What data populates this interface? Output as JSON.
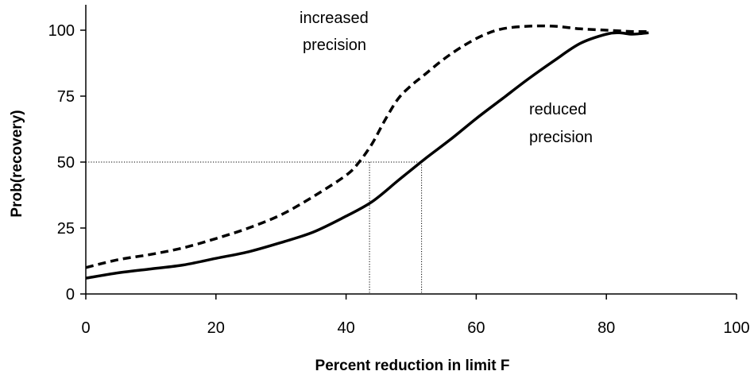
{
  "chart_data": {
    "type": "line",
    "title": "",
    "xlabel": "Percent reduction in limit F",
    "ylabel": "Prob(recovery)",
    "xlim": [
      0,
      100
    ],
    "ylim": [
      0,
      100
    ],
    "x_ticks": [
      0,
      20,
      40,
      60,
      80,
      100
    ],
    "y_ticks": [
      0,
      25,
      50,
      75,
      100
    ],
    "x_tick_labels": [
      "0",
      "20",
      "40",
      "60",
      "80",
      "100"
    ],
    "y_tick_labels": [
      "0",
      "25",
      "50",
      "75",
      "100"
    ],
    "grid": false,
    "legend": "none",
    "series": [
      {
        "name": "increased precision",
        "style": "dashed",
        "color": "#000000",
        "x": [
          0,
          5,
          10,
          15,
          20,
          25,
          30,
          35,
          40,
          42,
          44,
          46,
          48,
          50,
          52,
          55,
          58,
          61,
          64,
          68,
          72,
          76,
          80,
          84,
          86.5
        ],
        "y": [
          10,
          13,
          15,
          17.5,
          21,
          25,
          30,
          37,
          45,
          50,
          57,
          66,
          74,
          79,
          83,
          89,
          94,
          98,
          100.5,
          101.5,
          101.5,
          100.5,
          100,
          99.5,
          99.5
        ]
      },
      {
        "name": "reduced precision",
        "style": "solid",
        "color": "#000000",
        "x": [
          0,
          5,
          10,
          15,
          20,
          25,
          30,
          35,
          40,
          44,
          48,
          52,
          56,
          60,
          64,
          68,
          72,
          76,
          80,
          82,
          84,
          86.5
        ],
        "y": [
          6,
          8,
          9.5,
          11,
          13.5,
          16,
          19.5,
          23.5,
          29.5,
          35,
          43,
          51,
          58.5,
          66.5,
          74,
          81.5,
          88.5,
          95,
          98.5,
          99,
          98.5,
          99
        ]
      }
    ],
    "reference_lines": {
      "y": 50,
      "x_increased": 43.6,
      "x_reduced": 51.6
    },
    "annotations": [
      {
        "lines": [
          "increased",
          "precision"
        ],
        "series": "increased precision"
      },
      {
        "lines": [
          "reduced",
          "precision"
        ],
        "series": "reduced precision"
      }
    ]
  }
}
